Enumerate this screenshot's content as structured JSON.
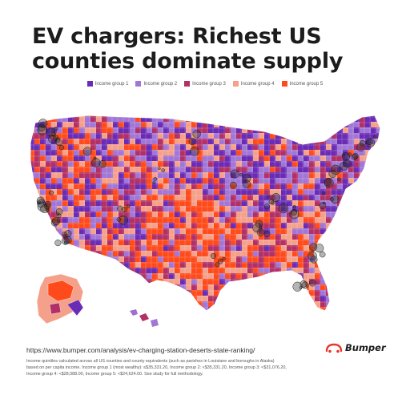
{
  "title": "EV chargers: Richest US counties dominate supply",
  "legend": [
    {
      "label": "Income group 1",
      "color": "#6a2bb5"
    },
    {
      "label": "Income group 2",
      "color": "#a176d6"
    },
    {
      "label": "Income group 3",
      "color": "#b23068"
    },
    {
      "label": "Income group 4",
      "color": "#f5a08a"
    },
    {
      "label": "Income group 5",
      "color": "#ff4a1c"
    }
  ],
  "source_url": "https://www.bumper.com/analysis/ev-charging-station-deserts-state-ranking/",
  "footnote": {
    "line1": "Income quintiles calculated across all US counties and county equivalents (such as parishes in Louisiane and boroughs in Alaska)",
    "line2": "based on per capita income. Income group 1 (most wealthy): ≤$35,331.20, Income group 2: <$35,331.20, Income group 3: <$31,076.20,",
    "line3": "Income group 4: <$28,088.00, Income group 5: <$24,624.00. See study for full methodology."
  },
  "brand": {
    "name": "Bumper",
    "icon": "car-logo-icon",
    "color": "#e8362a"
  },
  "map": {
    "region": "United States counties",
    "base_color": "#9b6fd3",
    "charger_marker_color": "#2b2b2b"
  }
}
